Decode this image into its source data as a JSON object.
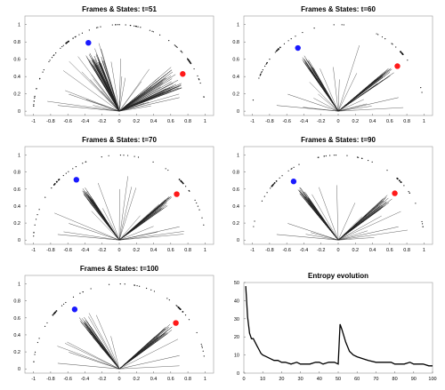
{
  "chart_data": [
    {
      "type": "scatter",
      "title": "Frames & States: t=51",
      "xlim": [
        -1.1,
        1.1
      ],
      "ylim": [
        -0.05,
        1.1
      ],
      "xticks": [
        "-1",
        "-0.8",
        "-0.6",
        "-0.4",
        "-0.2",
        "0",
        "0.2",
        "0.4",
        "0.6",
        "0.8",
        "1"
      ],
      "yticks": [
        "0",
        "0.2",
        "0.4",
        "0.6",
        "0.8",
        "1"
      ],
      "blue_state": [
        -0.36,
        0.79
      ],
      "red_state": [
        0.74,
        0.43
      ],
      "frames": "rays from origin",
      "colors": {
        "blue": "#1a1aff",
        "red": "#ff1a1a",
        "line": "#222222"
      }
    },
    {
      "type": "scatter",
      "title": "Frames & States: t=60",
      "xlim": [
        -1.1,
        1.1
      ],
      "ylim": [
        -0.05,
        1.1
      ],
      "xticks": [
        "-1",
        "-0.8",
        "-0.6",
        "-0.4",
        "-0.2",
        "0",
        "0.2",
        "0.4",
        "0.6",
        "0.8",
        "1"
      ],
      "yticks": [
        "0",
        "0.2",
        "0.4",
        "0.6",
        "0.8",
        "1"
      ],
      "blue_state": [
        -0.47,
        0.73
      ],
      "red_state": [
        0.69,
        0.52
      ]
    },
    {
      "type": "scatter",
      "title": "Frames & States: t=70",
      "xlim": [
        -1.1,
        1.1
      ],
      "ylim": [
        -0.05,
        1.1
      ],
      "xticks": [
        "-1",
        "-0.8",
        "-0.6",
        "-0.4",
        "-0.2",
        "0",
        "0.2",
        "0.4",
        "0.6",
        "0.8",
        "1"
      ],
      "yticks": [
        "0",
        "0.2",
        "0.4",
        "0.6",
        "0.8",
        "1"
      ],
      "blue_state": [
        -0.5,
        0.71
      ],
      "red_state": [
        0.67,
        0.54
      ]
    },
    {
      "type": "scatter",
      "title": "Frames & States: t=90",
      "xlim": [
        -1.1,
        1.1
      ],
      "ylim": [
        -0.05,
        1.1
      ],
      "xticks": [
        "-1",
        "-0.8",
        "-0.6",
        "-0.4",
        "-0.2",
        "0",
        "0.2",
        "0.4",
        "0.6",
        "0.8",
        "1"
      ],
      "yticks": [
        "0",
        "0.2",
        "0.4",
        "0.6",
        "0.8",
        "1"
      ],
      "blue_state": [
        -0.52,
        0.69
      ],
      "red_state": [
        0.66,
        0.55
      ]
    },
    {
      "type": "scatter",
      "title": "Frames & States: t=100",
      "xlim": [
        -1.1,
        1.1
      ],
      "ylim": [
        -0.05,
        1.1
      ],
      "xticks": [
        "-1",
        "-0.8",
        "-0.6",
        "-0.4",
        "-0.2",
        "0",
        "0.2",
        "0.4",
        "0.6",
        "0.8",
        "1"
      ],
      "yticks": [
        "0",
        "0.2",
        "0.4",
        "0.6",
        "0.8",
        "1"
      ],
      "blue_state": [
        -0.52,
        0.7
      ],
      "red_state": [
        0.66,
        0.54
      ]
    },
    {
      "type": "line",
      "title": "Entropy evolution",
      "xlim": [
        0,
        100
      ],
      "ylim": [
        0,
        50
      ],
      "xticks": [
        "0",
        "10",
        "20",
        "30",
        "40",
        "50",
        "60",
        "70",
        "80",
        "90",
        "100"
      ],
      "yticks": [
        "0",
        "10",
        "20",
        "30",
        "40",
        "50"
      ],
      "x": [
        1,
        2,
        3,
        4,
        5,
        6,
        7,
        8,
        9,
        10,
        12,
        14,
        16,
        18,
        20,
        22,
        25,
        28,
        30,
        32,
        35,
        38,
        40,
        42,
        45,
        48,
        50,
        51,
        52,
        54,
        56,
        58,
        60,
        63,
        66,
        70,
        74,
        78,
        80,
        82,
        85,
        88,
        90,
        92,
        95,
        98,
        100
      ],
      "y": [
        48,
        31,
        22,
        19,
        19,
        17,
        15,
        13,
        11,
        10,
        9,
        8,
        7,
        7,
        6,
        6,
        5,
        6,
        5,
        5,
        5,
        6,
        6,
        5,
        6,
        6,
        5,
        27,
        24,
        17,
        12,
        10,
        9,
        8,
        7,
        6,
        6,
        6,
        5,
        5,
        5,
        6,
        5,
        5,
        5,
        4,
        4
      ],
      "color": "#000000"
    }
  ]
}
